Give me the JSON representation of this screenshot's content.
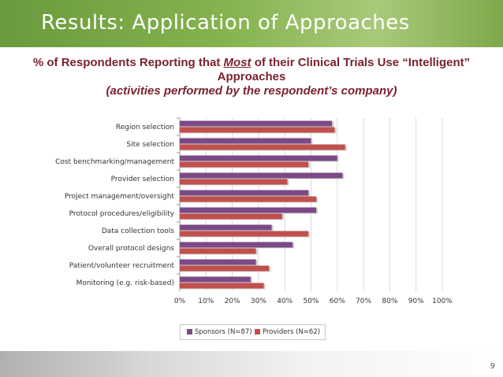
{
  "header": {
    "title": "Results: Application of Approaches"
  },
  "subtitle": {
    "prefix": "% of  Respondents Reporting that ",
    "emphasis": "Most",
    "suffix": " of their Clinical Trials Use “Intelligent”",
    "line2": "Approaches",
    "line3": "(activities performed by the respondent’s company)"
  },
  "colors": {
    "banner": "#7aa845",
    "sponsors": "#7b4a86",
    "providers": "#c0504d",
    "subtitle": "#7a2230"
  },
  "chart_data": {
    "type": "bar",
    "orientation": "horizontal",
    "categories": [
      "Region selection",
      "Site selection",
      "Cost benchmarking/management",
      "Provider selection",
      "Project management/oversight",
      "Protocol procedures/eligibility",
      "Data collection tools",
      "Overall protocol designs",
      "Patient/volunteer recruitment",
      "Monitoring (e.g. risk-based)"
    ],
    "series": [
      {
        "name": "Sponsors (N=87)",
        "values": [
          58,
          50,
          60,
          62,
          49,
          52,
          35,
          43,
          29,
          27
        ]
      },
      {
        "name": "Providers (N=62)",
        "values": [
          59,
          63,
          49,
          41,
          52,
          39,
          49,
          29,
          34,
          32
        ]
      }
    ],
    "xlim": [
      0,
      100
    ],
    "x_ticks": [
      "0%",
      "10%",
      "20%",
      "30%",
      "40%",
      "50%",
      "60%",
      "70%",
      "80%",
      "90%",
      "100%"
    ],
    "grid": true,
    "legend_position": "bottom"
  },
  "footer": {
    "page_number": "9"
  }
}
